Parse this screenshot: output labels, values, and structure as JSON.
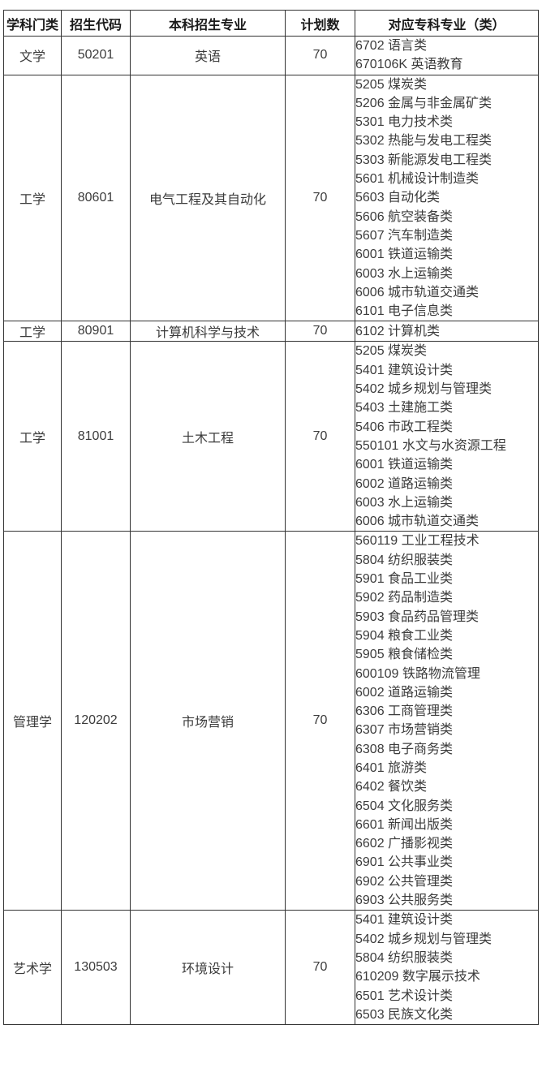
{
  "colors": {
    "border": "#333333",
    "body_text": "#3b3b3b",
    "header_text": "#1a1a1a",
    "background": "#ffffff"
  },
  "table": {
    "headers": [
      "学科门类",
      "招生代码",
      "本科招生专业",
      "计划数",
      "对应专科专业（类）"
    ],
    "rows": [
      {
        "category": "文学",
        "code": "50201",
        "major": "英语",
        "plan": "70",
        "specialties": [
          "6702 语言类",
          "670106K 英语教育"
        ]
      },
      {
        "category": "工学",
        "code": "80601",
        "major": "电气工程及其自动化",
        "plan": "70",
        "specialties": [
          "5205 煤炭类",
          "5206 金属与非金属矿类",
          "5301 电力技术类",
          "5302 热能与发电工程类",
          "5303 新能源发电工程类",
          "5601 机械设计制造类",
          "5603 自动化类",
          "5606 航空装备类",
          "5607 汽车制造类",
          "6001 铁道运输类",
          "6003 水上运输类",
          "6006 城市轨道交通类",
          "6101 电子信息类"
        ]
      },
      {
        "category": "工学",
        "code": "80901",
        "major": "计算机科学与技术",
        "plan": "70",
        "specialties": [
          "6102 计算机类"
        ]
      },
      {
        "category": "工学",
        "code": "81001",
        "major": "土木工程",
        "plan": "70",
        "specialties": [
          "5205 煤炭类",
          "5401 建筑设计类",
          "5402 城乡规划与管理类",
          "5403 土建施工类",
          "5406 市政工程类",
          "550101 水文与水资源工程",
          "6001 铁道运输类",
          "6002 道路运输类",
          "6003 水上运输类",
          "6006 城市轨道交通类"
        ]
      },
      {
        "category": "管理学",
        "code": "120202",
        "major": "市场营销",
        "plan": "70",
        "specialties": [
          "560119 工业工程技术",
          "5804 纺织服装类",
          "5901 食品工业类",
          "5902 药品制造类",
          "5903 食品药品管理类",
          "5904 粮食工业类",
          "5905 粮食储检类",
          "600109 铁路物流管理",
          "6002 道路运输类",
          "6306 工商管理类",
          "6307 市场营销类",
          "6308 电子商务类",
          "6401 旅游类",
          "6402 餐饮类",
          "6504 文化服务类",
          "6601 新闻出版类",
          "6602 广播影视类",
          "6901 公共事业类",
          "6902 公共管理类",
          "6903 公共服务类"
        ]
      },
      {
        "category": "艺术学",
        "code": "130503",
        "major": "环境设计",
        "plan": "70",
        "specialties": [
          "5401 建筑设计类",
          "5402 城乡规划与管理类",
          "5804 纺织服装类",
          "610209 数字展示技术",
          "6501 艺术设计类",
          "6503 民族文化类"
        ]
      }
    ]
  }
}
